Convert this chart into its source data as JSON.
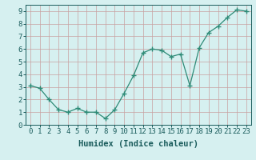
{
  "x": [
    0,
    1,
    2,
    3,
    4,
    5,
    6,
    7,
    8,
    9,
    10,
    11,
    12,
    13,
    14,
    15,
    16,
    17,
    18,
    19,
    20,
    21,
    22,
    23
  ],
  "y": [
    3.1,
    2.9,
    2.0,
    1.2,
    1.0,
    1.3,
    1.0,
    1.0,
    0.5,
    1.2,
    2.5,
    3.9,
    5.7,
    6.0,
    5.9,
    5.4,
    5.6,
    3.1,
    6.1,
    7.3,
    7.8,
    8.5,
    9.1,
    9.0
  ],
  "xlabel": "Humidex (Indice chaleur)",
  "ylim": [
    0,
    9.5
  ],
  "xlim": [
    -0.5,
    23.5
  ],
  "line_color": "#2e8b77",
  "marker_color": "#2e8b77",
  "bg_color": "#d6f0f0",
  "grid_color_major": "#c8a0a0",
  "grid_color_minor": "#ddc8c8",
  "tick_color": "#1a5c5c",
  "label_color": "#1a5c5c",
  "yticks": [
    0,
    1,
    2,
    3,
    4,
    5,
    6,
    7,
    8,
    9
  ],
  "xlabel_fontsize": 7.5,
  "tick_fontsize": 6.5
}
